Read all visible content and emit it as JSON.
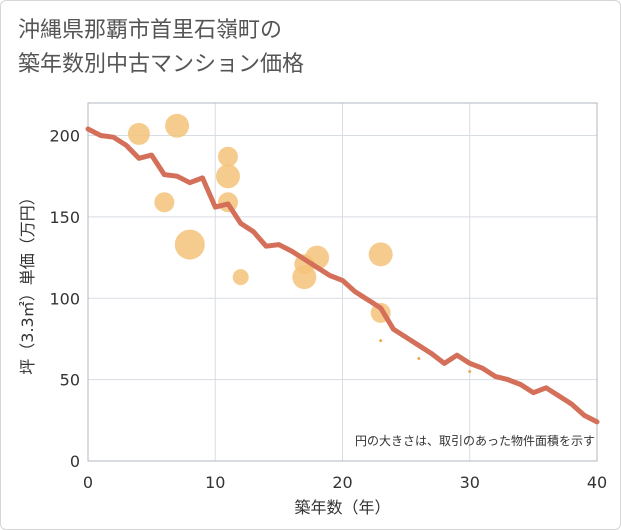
{
  "title_lines": [
    "沖縄県那覇市首里石嶺町の",
    "築年数別中古マンション価格"
  ],
  "note": "円の大きさは、取引のあった物件面積を示す",
  "chart_data": {
    "type": "scatter",
    "xlabel": "築年数（年）",
    "ylabel": "坪（3.3㎡）単価（万円）",
    "xlim": [
      0,
      40
    ],
    "ylim": [
      0,
      220
    ],
    "xticks": [
      0,
      10,
      20,
      30,
      40
    ],
    "yticks": [
      0,
      50,
      100,
      150,
      200
    ],
    "grid": true,
    "colors": {
      "bubble": "#f5c37a",
      "small_point": "#f0a850",
      "trend": "#d4705a",
      "grid": "#d8dde3",
      "plot_border": "#b0b8c0"
    },
    "bubbles": [
      {
        "x": 4,
        "y": 201,
        "r": 11
      },
      {
        "x": 7,
        "y": 206,
        "r": 12
      },
      {
        "x": 6,
        "y": 159,
        "r": 10
      },
      {
        "x": 8,
        "y": 133,
        "r": 15
      },
      {
        "x": 11,
        "y": 187,
        "r": 10
      },
      {
        "x": 11,
        "y": 175,
        "r": 12
      },
      {
        "x": 11,
        "y": 159,
        "r": 10
      },
      {
        "x": 12,
        "y": 113,
        "r": 8
      },
      {
        "x": 17,
        "y": 113,
        "r": 12
      },
      {
        "x": 17,
        "y": 121,
        "r": 10
      },
      {
        "x": 18,
        "y": 125,
        "r": 12
      },
      {
        "x": 23,
        "y": 127,
        "r": 12
      },
      {
        "x": 23,
        "y": 91,
        "r": 10
      },
      {
        "x": 23,
        "y": 74,
        "r": 1.5
      },
      {
        "x": 26,
        "y": 63,
        "r": 1.5
      },
      {
        "x": 30,
        "y": 55,
        "r": 1.5
      }
    ],
    "trend": {
      "x": [
        0,
        1,
        2,
        3,
        4,
        5,
        6,
        7,
        8,
        9,
        10,
        11,
        12,
        13,
        14,
        15,
        16,
        17,
        18,
        19,
        20,
        21,
        22,
        23,
        24,
        25,
        26,
        27,
        28,
        29,
        30,
        31,
        32,
        33,
        34,
        35,
        36,
        37,
        38,
        39,
        40
      ],
      "y": [
        204,
        200,
        199,
        194,
        186,
        188,
        176,
        175,
        171,
        174,
        156,
        158,
        146,
        141,
        132,
        133,
        129,
        124,
        119,
        114,
        111,
        104,
        99,
        94,
        81,
        76,
        71,
        66,
        60,
        65,
        60,
        57,
        52,
        50,
        47,
        42,
        45,
        40,
        35,
        28,
        24
      ]
    }
  }
}
